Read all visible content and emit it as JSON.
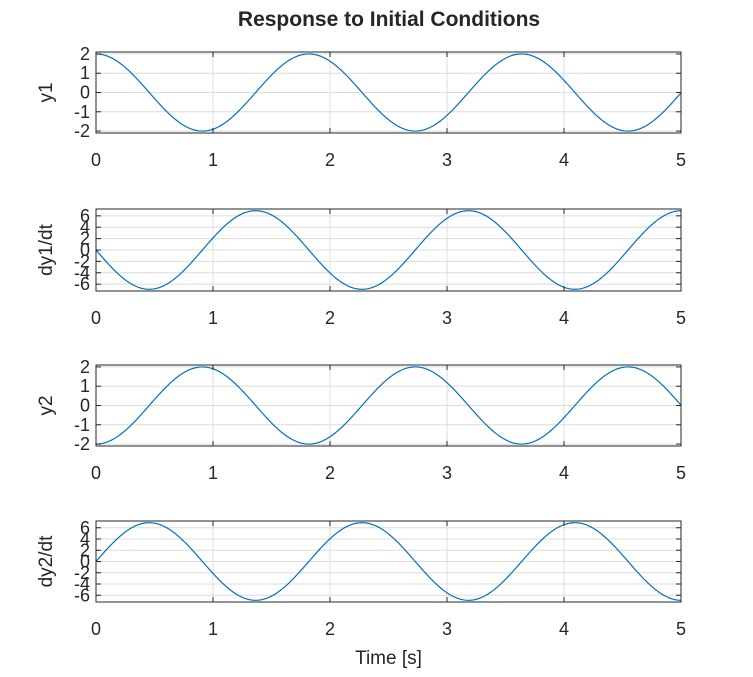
{
  "figure": {
    "title": "Response to Initial Conditions"
  },
  "chart_data": [
    {
      "type": "line",
      "ylabel": "y1",
      "xlabel": "",
      "xlim": [
        0,
        5
      ],
      "ylim": [
        -2.1,
        2.1
      ],
      "xticks": [
        0,
        1,
        2,
        3,
        4,
        5
      ],
      "yticks": [
        -2,
        -1,
        0,
        1,
        2
      ],
      "grid": true,
      "series": [
        {
          "color": "#0072bd",
          "amplitude": 2,
          "omega": 3.454,
          "form": "cos",
          "x_start": 0,
          "x_end": 5
        }
      ]
    },
    {
      "type": "line",
      "ylabel": "dy1/dt",
      "xlabel": "",
      "xlim": [
        0,
        5
      ],
      "ylim": [
        -7.2,
        7.2
      ],
      "xticks": [
        0,
        1,
        2,
        3,
        4,
        5
      ],
      "yticks": [
        -6,
        -4,
        -2,
        0,
        2,
        4,
        6
      ],
      "grid": true,
      "series": [
        {
          "color": "#0072bd",
          "amplitude": 6.9,
          "omega": 3.454,
          "form": "-sin",
          "x_start": 0,
          "x_end": 5
        }
      ]
    },
    {
      "type": "line",
      "ylabel": "y2",
      "xlabel": "",
      "xlim": [
        0,
        5
      ],
      "ylim": [
        -2.1,
        2.1
      ],
      "xticks": [
        0,
        1,
        2,
        3,
        4,
        5
      ],
      "yticks": [
        -2,
        -1,
        0,
        1,
        2
      ],
      "grid": true,
      "series": [
        {
          "color": "#0072bd",
          "amplitude": 2,
          "omega": 3.454,
          "form": "-cos",
          "x_start": 0,
          "x_end": 5
        }
      ]
    },
    {
      "type": "line",
      "ylabel": "dy2/dt",
      "xlabel": "Time [s]",
      "xlim": [
        0,
        5
      ],
      "ylim": [
        -7.2,
        7.2
      ],
      "xticks": [
        0,
        1,
        2,
        3,
        4,
        5
      ],
      "yticks": [
        -6,
        -4,
        -2,
        0,
        2,
        4,
        6
      ],
      "grid": true,
      "series": [
        {
          "color": "#0072bd",
          "amplitude": 6.9,
          "omega": 3.454,
          "form": "sin",
          "x_start": 0,
          "x_end": 5
        }
      ]
    }
  ]
}
